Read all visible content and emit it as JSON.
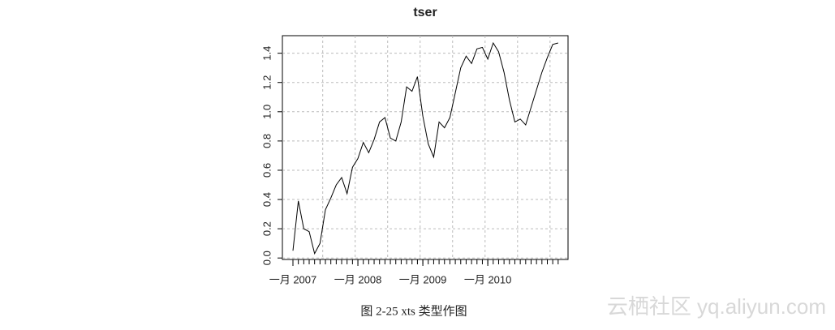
{
  "chart_data": {
    "type": "line",
    "title": "tser",
    "x": [
      "2007-01",
      "2007-02",
      "2007-03",
      "2007-04",
      "2007-05",
      "2007-06",
      "2007-07",
      "2007-08",
      "2007-09",
      "2007-10",
      "2007-11",
      "2007-12",
      "2008-01",
      "2008-02",
      "2008-03",
      "2008-04",
      "2008-05",
      "2008-06",
      "2008-07",
      "2008-08",
      "2008-09",
      "2008-10",
      "2008-11",
      "2008-12",
      "2009-01",
      "2009-02",
      "2009-03",
      "2009-04",
      "2009-05",
      "2009-06",
      "2009-07",
      "2009-08",
      "2009-09",
      "2009-10",
      "2009-11",
      "2009-12",
      "2010-01",
      "2010-02",
      "2010-03",
      "2010-04",
      "2010-05",
      "2010-06",
      "2010-07",
      "2010-08",
      "2010-09",
      "2010-10",
      "2010-11",
      "2010-12",
      "2011-01",
      "2011-02"
    ],
    "series": [
      {
        "name": "tser",
        "color": "#000000",
        "values": [
          0.05,
          0.39,
          0.2,
          0.18,
          0.03,
          0.1,
          0.33,
          0.41,
          0.5,
          0.55,
          0.44,
          0.62,
          0.68,
          0.79,
          0.72,
          0.81,
          0.93,
          0.96,
          0.82,
          0.8,
          0.93,
          1.17,
          1.14,
          1.24,
          0.97,
          0.78,
          0.69,
          0.93,
          0.89,
          0.96,
          1.13,
          1.3,
          1.38,
          1.33,
          1.43,
          1.44,
          1.36,
          1.47,
          1.41,
          1.27,
          1.08,
          0.93,
          0.95,
          0.91,
          1.03,
          1.15,
          1.27,
          1.37,
          1.46,
          1.47
        ]
      }
    ],
    "xticks": [
      {
        "value": "2007-01",
        "label": "一月 2007"
      },
      {
        "value": "2008-01",
        "label": "一月 2008"
      },
      {
        "value": "2009-01",
        "label": "一月 2009"
      },
      {
        "value": "2010-01",
        "label": "一月 2010"
      }
    ],
    "ylim": [
      -0.01,
      1.52
    ],
    "yticks": [
      {
        "value": 0,
        "label": "0.0"
      },
      0.2,
      0.4,
      0.6,
      0.8,
      {
        "value": 1,
        "label": "1.0"
      },
      1.2,
      1.4
    ],
    "grid": true
  },
  "caption": "图 2-25    xts 类型作图",
  "watermark": "云栖社区 yq.aliyun.com"
}
